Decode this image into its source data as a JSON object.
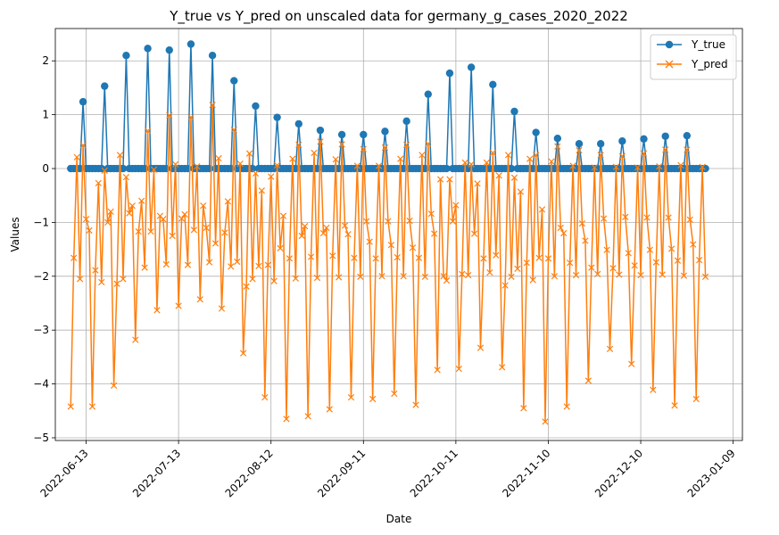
{
  "chart_data": {
    "type": "line",
    "title": "Y_true vs Y_pred on unscaled data for germany_g_cases_2020_2022",
    "xlabel": "Date",
    "ylabel": "Values",
    "x_start": "2022-06-08",
    "x_step_days": 1,
    "x_ticks": [
      "2022-06-13",
      "2022-07-13",
      "2022-08-12",
      "2022-09-11",
      "2022-10-11",
      "2022-11-10",
      "2022-12-10",
      "2023-01-09"
    ],
    "y_ticks": [
      -5,
      -4,
      -3,
      -2,
      -1,
      0,
      1,
      2
    ],
    "xlim": [
      "2022-06-03",
      "2023-01-12"
    ],
    "ylim": [
      -5.05,
      2.6
    ],
    "grid": true,
    "legend_position": "top-right",
    "colors": {
      "y_true": "#1f77b4",
      "y_pred": "#ff7f0e"
    },
    "series": [
      {
        "name": "Y_true",
        "marker": "circle",
        "values": [
          0,
          0,
          0,
          0,
          1.24,
          0,
          0,
          0,
          0,
          0,
          0,
          1.53,
          0,
          0,
          0,
          0,
          0,
          0,
          2.1,
          0,
          0,
          0,
          0,
          0,
          0,
          2.23,
          0,
          0,
          0,
          0,
          0,
          0,
          2.2,
          0,
          0,
          0,
          0,
          0,
          0,
          2.31,
          0,
          0,
          0,
          0,
          0,
          0,
          2.1,
          0,
          0,
          0,
          0,
          0,
          0,
          1.63,
          0,
          0,
          0,
          0,
          0,
          0,
          1.16,
          0,
          0,
          0,
          0,
          0,
          0,
          0.95,
          0,
          0,
          0,
          0,
          0,
          0,
          0.83,
          0,
          0,
          0,
          0,
          0,
          0,
          0.71,
          0,
          0,
          0,
          0,
          0,
          0,
          0.63,
          0,
          0,
          0,
          0,
          0,
          0,
          0.63,
          0,
          0,
          0,
          0,
          0,
          0,
          0.69,
          0,
          0,
          0,
          0,
          0,
          0,
          0.88,
          0,
          0,
          0,
          0,
          0,
          0,
          1.38,
          0,
          0,
          0,
          0,
          0,
          0,
          1.77,
          0,
          0,
          0,
          0,
          0,
          0,
          1.88,
          0,
          0,
          0,
          0,
          0,
          0,
          1.56,
          0,
          0,
          0,
          0,
          0,
          0,
          1.06,
          0,
          0,
          0,
          0,
          0,
          0,
          0.67,
          0,
          0,
          0,
          0,
          0,
          0,
          0.56,
          0,
          0,
          0,
          0,
          0,
          0,
          0.46,
          0,
          0,
          0,
          0,
          0,
          0,
          0.46,
          0,
          0,
          0,
          0,
          0,
          0,
          0.51,
          0,
          0,
          0,
          0,
          0,
          0,
          0.55,
          0,
          0,
          0,
          0,
          0,
          0,
          0.6,
          0,
          0,
          0,
          0,
          0,
          0,
          0.61,
          0,
          0,
          0,
          0,
          0,
          0
        ]
      },
      {
        "name": "Y_pred",
        "marker": "x",
        "values": [
          -4.42,
          -1.66,
          0.21,
          -2.05,
          0.43,
          -0.94,
          -1.15,
          -4.42,
          -1.89,
          -0.27,
          -2.11,
          -0.04,
          -1.0,
          -0.8,
          -4.03,
          -2.14,
          0.25,
          -2.05,
          -0.16,
          -0.83,
          -0.69,
          -3.18,
          -1.17,
          -0.6,
          -1.84,
          0.7,
          -1.17,
          -0.02,
          -2.63,
          -0.88,
          -0.94,
          -1.78,
          0.99,
          -1.25,
          0.08,
          -2.55,
          -0.93,
          -0.85,
          -1.79,
          0.95,
          -1.14,
          0.04,
          -2.43,
          -0.69,
          -1.1,
          -1.74,
          1.18,
          -1.39,
          0.19,
          -2.6,
          -1.19,
          -0.61,
          -1.82,
          0.72,
          -1.73,
          0.09,
          -3.43,
          -2.19,
          0.28,
          -2.05,
          -0.09,
          -1.81,
          -0.41,
          -4.25,
          -1.79,
          -0.15,
          -2.09,
          0.06,
          -1.48,
          -0.88,
          -4.65,
          -1.67,
          0.18,
          -2.04,
          0.44,
          -1.25,
          -1.07,
          -4.6,
          -1.64,
          0.29,
          -2.03,
          0.5,
          -1.2,
          -1.1,
          -4.47,
          -1.62,
          0.17,
          -2.02,
          0.45,
          -1.06,
          -1.22,
          -4.25,
          -1.66,
          0.05,
          -2.01,
          0.36,
          -0.98,
          -1.36,
          -4.28,
          -1.67,
          0.05,
          -2.0,
          0.39,
          -0.98,
          -1.42,
          -4.18,
          -1.65,
          0.18,
          -2.0,
          0.44,
          -0.97,
          -1.47,
          -4.39,
          -1.66,
          0.25,
          -2.01,
          0.46,
          -0.84,
          -1.21,
          -3.74,
          -0.2,
          -2.0,
          -2.08,
          -0.2,
          -0.98,
          -0.68,
          -3.72,
          -1.96,
          0.11,
          -1.98,
          0.08,
          -1.21,
          -0.28,
          -3.33,
          -1.67,
          0.11,
          -1.93,
          0.29,
          -1.61,
          -0.13,
          -3.69,
          -2.17,
          0.25,
          -2.01,
          -0.17,
          -1.86,
          -0.43,
          -4.45,
          -1.75,
          0.18,
          -2.07,
          0.25,
          -1.66,
          -0.76,
          -4.7,
          -1.67,
          0.13,
          -2.0,
          0.41,
          -1.1,
          -1.2,
          -4.42,
          -1.75,
          0.05,
          -1.98,
          0.34,
          -1.02,
          -1.34,
          -3.94,
          -1.84,
          0.02,
          -1.96,
          0.25,
          -0.93,
          -1.51,
          -3.35,
          -1.85,
          0.03,
          -1.97,
          0.23,
          -0.9,
          -1.57,
          -3.63,
          -1.8,
          0.02,
          -1.98,
          0.28,
          -0.91,
          -1.51,
          -4.11,
          -1.74,
          0.04,
          -1.97,
          0.35,
          -0.91,
          -1.49,
          -4.4,
          -1.71,
          0.06,
          -1.99,
          0.35,
          -0.95,
          -1.41,
          -4.28,
          -1.7,
          0.03,
          -2.01
        ]
      }
    ]
  }
}
